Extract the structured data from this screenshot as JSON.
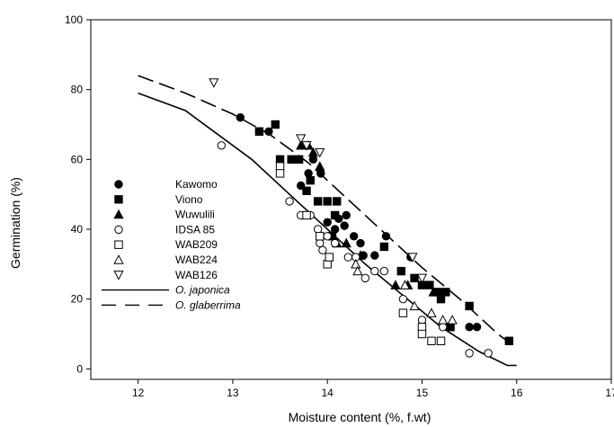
{
  "chart_data": {
    "type": "scatter",
    "xlabel": "Moisture content (%, f.wt)",
    "ylabel": "Germination (%)",
    "xlim": [
      11.5,
      17
    ],
    "ylim": [
      -3,
      100
    ],
    "x_ticks": [
      "12",
      "13",
      "14",
      "15",
      "16",
      "17"
    ],
    "y_ticks": [
      "0",
      "20",
      "40",
      "60",
      "80",
      "100"
    ],
    "grid": false,
    "legend_position": "left-middle",
    "series": [
      {
        "name": "Kawomo",
        "marker": "circle-filled",
        "points": [
          [
            13.08,
            72
          ],
          [
            13.38,
            68
          ],
          [
            13.72,
            52.5
          ],
          [
            13.8,
            56
          ],
          [
            13.85,
            60
          ],
          [
            13.93,
            56
          ],
          [
            14.0,
            42
          ],
          [
            14.02,
            38
          ],
          [
            14.08,
            40
          ],
          [
            14.12,
            43
          ],
          [
            14.18,
            41
          ],
          [
            14.2,
            44
          ],
          [
            14.28,
            38
          ],
          [
            14.35,
            36
          ],
          [
            14.38,
            32.5
          ],
          [
            14.5,
            32.5
          ],
          [
            14.62,
            38
          ],
          [
            14.88,
            32
          ],
          [
            15.2,
            22
          ],
          [
            15.5,
            12
          ],
          [
            15.58,
            12
          ]
        ]
      },
      {
        "name": "Viono",
        "marker": "square-filled",
        "points": [
          [
            13.28,
            68
          ],
          [
            13.45,
            70
          ],
          [
            13.5,
            60
          ],
          [
            13.62,
            60
          ],
          [
            13.7,
            60
          ],
          [
            13.78,
            51
          ],
          [
            13.82,
            54
          ],
          [
            13.9,
            48
          ],
          [
            14.0,
            48
          ],
          [
            14.05,
            38
          ],
          [
            14.08,
            44
          ],
          [
            14.1,
            48
          ],
          [
            14.6,
            35
          ],
          [
            14.78,
            28
          ],
          [
            14.92,
            26
          ],
          [
            15.0,
            24
          ],
          [
            15.08,
            24
          ],
          [
            15.15,
            22
          ],
          [
            15.2,
            20
          ],
          [
            15.25,
            22
          ],
          [
            15.3,
            12
          ],
          [
            15.5,
            18
          ],
          [
            15.92,
            8
          ]
        ]
      },
      {
        "name": "Wuwulili",
        "marker": "triangle-up-filled",
        "points": [
          [
            13.72,
            64
          ],
          [
            13.8,
            64
          ],
          [
            13.85,
            62
          ],
          [
            13.92,
            58
          ],
          [
            14.1,
            36
          ],
          [
            14.2,
            36
          ],
          [
            14.35,
            32.5
          ],
          [
            14.72,
            24
          ],
          [
            14.85,
            24
          ],
          [
            15.12,
            22
          ]
        ]
      },
      {
        "name": "IDSA 85",
        "marker": "circle-open",
        "points": [
          [
            12.88,
            64
          ],
          [
            13.6,
            48
          ],
          [
            13.72,
            44
          ],
          [
            13.82,
            44
          ],
          [
            13.9,
            40
          ],
          [
            13.92,
            36
          ],
          [
            13.95,
            34
          ],
          [
            14.0,
            38
          ],
          [
            14.08,
            36
          ],
          [
            14.22,
            32
          ],
          [
            14.3,
            32
          ],
          [
            14.4,
            26
          ],
          [
            14.5,
            28
          ],
          [
            14.6,
            28
          ],
          [
            14.8,
            20
          ],
          [
            15.0,
            14
          ],
          [
            15.22,
            12
          ],
          [
            15.5,
            4.5
          ],
          [
            15.7,
            4.5
          ]
        ]
      },
      {
        "name": "WAB209",
        "marker": "square-open",
        "points": [
          [
            13.5,
            58
          ],
          [
            13.5,
            56
          ],
          [
            13.78,
            44
          ],
          [
            13.92,
            38
          ],
          [
            14.0,
            30
          ],
          [
            14.02,
            32
          ],
          [
            14.8,
            16
          ],
          [
            15.0,
            12
          ],
          [
            15.0,
            10
          ],
          [
            15.1,
            8
          ],
          [
            15.2,
            8
          ]
        ]
      },
      {
        "name": "WAB224",
        "marker": "triangle-up-open",
        "points": [
          [
            14.3,
            30
          ],
          [
            14.32,
            28
          ],
          [
            14.82,
            24
          ],
          [
            14.92,
            18
          ],
          [
            15.1,
            16
          ],
          [
            15.22,
            14
          ],
          [
            15.32,
            14
          ]
        ]
      },
      {
        "name": "WAB126",
        "marker": "triangle-down-open",
        "points": [
          [
            12.8,
            82
          ],
          [
            13.72,
            66
          ],
          [
            13.78,
            64
          ],
          [
            13.92,
            62
          ],
          [
            14.9,
            32
          ],
          [
            15.0,
            26
          ]
        ]
      }
    ],
    "curves": [
      {
        "name": "O. japonica",
        "style": "solid",
        "points": [
          [
            12.0,
            79
          ],
          [
            12.5,
            74
          ],
          [
            12.8,
            68
          ],
          [
            13.2,
            60
          ],
          [
            13.6,
            50
          ],
          [
            14.0,
            40
          ],
          [
            14.4,
            30
          ],
          [
            14.8,
            21
          ],
          [
            15.2,
            12
          ],
          [
            15.6,
            5
          ],
          [
            15.9,
            1
          ],
          [
            16.0,
            1
          ]
        ]
      },
      {
        "name": "O. glaberrima",
        "style": "dashed",
        "points": [
          [
            12.0,
            84
          ],
          [
            12.5,
            79
          ],
          [
            13.0,
            73
          ],
          [
            13.4,
            67
          ],
          [
            13.8,
            59
          ],
          [
            14.2,
            49
          ],
          [
            14.6,
            39
          ],
          [
            15.0,
            29
          ],
          [
            15.4,
            20
          ],
          [
            15.8,
            10
          ],
          [
            16.0,
            6
          ]
        ]
      }
    ]
  }
}
